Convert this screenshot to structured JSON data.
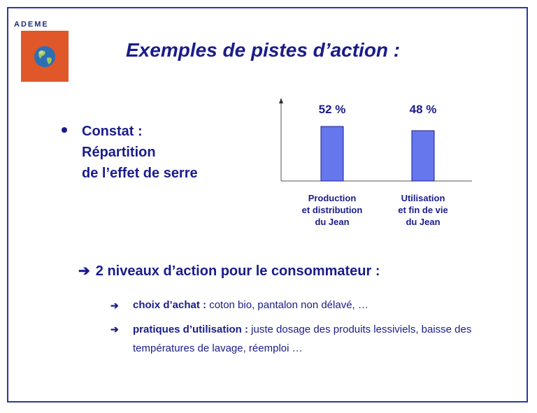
{
  "branding": {
    "name": "ADEME"
  },
  "title": "Exemples de pistes d’action :",
  "constat": {
    "lines": [
      "Constat :",
      "Répartition",
      "de l’effet de serre"
    ]
  },
  "chart_data": {
    "type": "bar",
    "categories": [
      [
        "Production",
        "et distribution",
        "du Jean"
      ],
      [
        "Utilisation",
        "et fin de vie",
        "du Jean"
      ]
    ],
    "values": [
      52,
      48
    ],
    "value_labels": [
      "52 %",
      "48 %"
    ],
    "title": "",
    "xlabel": "",
    "ylabel": "",
    "ylim": [
      0,
      100
    ],
    "bar_color": "#6677ee",
    "grid": false
  },
  "action": {
    "arrow": "➔",
    "heading": "2 niveaux d’action pour le consommateur :",
    "items": [
      {
        "arrow": "➔",
        "label": "choix d’achat :",
        "text": " coton bio, pantalon non délavé, …"
      },
      {
        "arrow": "➔",
        "label": "pratiques d’utilisation :",
        "text": " juste dosage des produits lessiviels, baisse des températures de lavage, réemploi …"
      }
    ]
  },
  "colors": {
    "border": "#2b3a9c",
    "text": "#1a1c8a",
    "logo_bg": "#e0572a"
  }
}
